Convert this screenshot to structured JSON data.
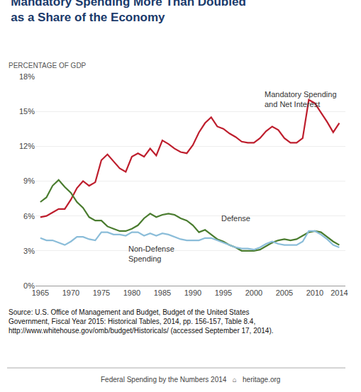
{
  "chart_data": {
    "type": "line",
    "title": "Mandatory Spending More Than Doubled\nas a Share of the Economy",
    "subtitle": "PERCENTAGE OF GDP",
    "x": [
      1965,
      1966,
      1967,
      1968,
      1969,
      1970,
      1971,
      1972,
      1973,
      1974,
      1975,
      1976,
      1977,
      1978,
      1979,
      1980,
      1981,
      1982,
      1983,
      1984,
      1985,
      1986,
      1987,
      1988,
      1989,
      1990,
      1991,
      1992,
      1993,
      1994,
      1995,
      1996,
      1997,
      1998,
      1999,
      2000,
      2001,
      2002,
      2003,
      2004,
      2005,
      2006,
      2007,
      2008,
      2009,
      2010,
      2011,
      2012,
      2013,
      2014
    ],
    "series": [
      {
        "name": "Mandatory Spending\nand Net Interest",
        "color": "#be1e2d",
        "values": [
          5.9,
          6.0,
          6.3,
          6.6,
          6.6,
          7.4,
          8.4,
          9.0,
          8.6,
          8.9,
          10.8,
          11.3,
          10.7,
          10.1,
          9.8,
          11.1,
          11.4,
          11.1,
          11.8,
          11.2,
          12.5,
          12.2,
          11.8,
          11.5,
          11.4,
          12.1,
          13.2,
          14.0,
          14.5,
          13.7,
          13.5,
          13.1,
          12.8,
          12.4,
          12.3,
          12.3,
          12.7,
          13.3,
          13.7,
          13.4,
          12.7,
          12.3,
          12.3,
          12.7,
          16.0,
          15.7,
          14.9,
          14.1,
          13.2,
          14.0
        ]
      },
      {
        "name": "Defense",
        "color": "#4a7c2f",
        "values": [
          7.2,
          7.6,
          8.6,
          9.1,
          8.5,
          8.0,
          7.2,
          6.7,
          5.9,
          5.6,
          5.6,
          5.1,
          4.9,
          4.7,
          4.7,
          4.9,
          5.2,
          5.8,
          6.2,
          5.9,
          6.1,
          6.2,
          6.1,
          5.8,
          5.6,
          5.2,
          4.6,
          4.8,
          4.4,
          4.0,
          3.8,
          3.5,
          3.3,
          3.0,
          3.0,
          3.0,
          3.1,
          3.4,
          3.7,
          3.9,
          4.0,
          3.9,
          4.0,
          4.3,
          4.6,
          4.7,
          4.6,
          4.2,
          3.8,
          3.5
        ]
      },
      {
        "name": "Non-Defense\nSpending",
        "color": "#8bbdd9",
        "values": [
          4.1,
          3.9,
          3.9,
          3.7,
          3.5,
          3.8,
          4.2,
          4.2,
          4.0,
          3.9,
          4.6,
          4.6,
          4.4,
          4.4,
          4.3,
          4.6,
          4.6,
          4.3,
          4.5,
          4.3,
          4.5,
          4.4,
          4.2,
          4.0,
          3.9,
          3.9,
          3.9,
          4.1,
          4.1,
          3.9,
          3.7,
          3.5,
          3.3,
          3.2,
          3.2,
          3.1,
          3.3,
          3.6,
          3.8,
          3.6,
          3.5,
          3.5,
          3.5,
          3.8,
          4.7,
          4.7,
          4.4,
          4.0,
          3.5,
          3.3
        ]
      }
    ],
    "xlim": [
      1964.2,
      2015.0
    ],
    "xticks": [
      1965,
      1970,
      1975,
      1980,
      1985,
      1990,
      1995,
      2000,
      2005,
      2010,
      2014
    ],
    "ylim": [
      0,
      18
    ],
    "yticks": [
      {
        "value": 0,
        "label": "0%"
      },
      {
        "value": 3,
        "label": "3%"
      },
      {
        "value": 6,
        "label": "6%"
      },
      {
        "value": 9,
        "label": "9%"
      },
      {
        "value": 12,
        "label": "12%"
      },
      {
        "value": 15,
        "label": "15%"
      },
      {
        "value": 18,
        "label": "18%"
      }
    ],
    "grid": true,
    "annotations": [
      "Source: U.S. Office of Management and Budget, Budget of the United States Government, Fiscal Year 2015: Historical Tables, 2014, pp. 156-157, Table 8.4, http://www.whitehouse.gov/omb/budget/Historicals/ (accessed September 17, 2014).",
      "Federal Spending by the Numbers 2014   ⌂   heritage.org"
    ]
  }
}
